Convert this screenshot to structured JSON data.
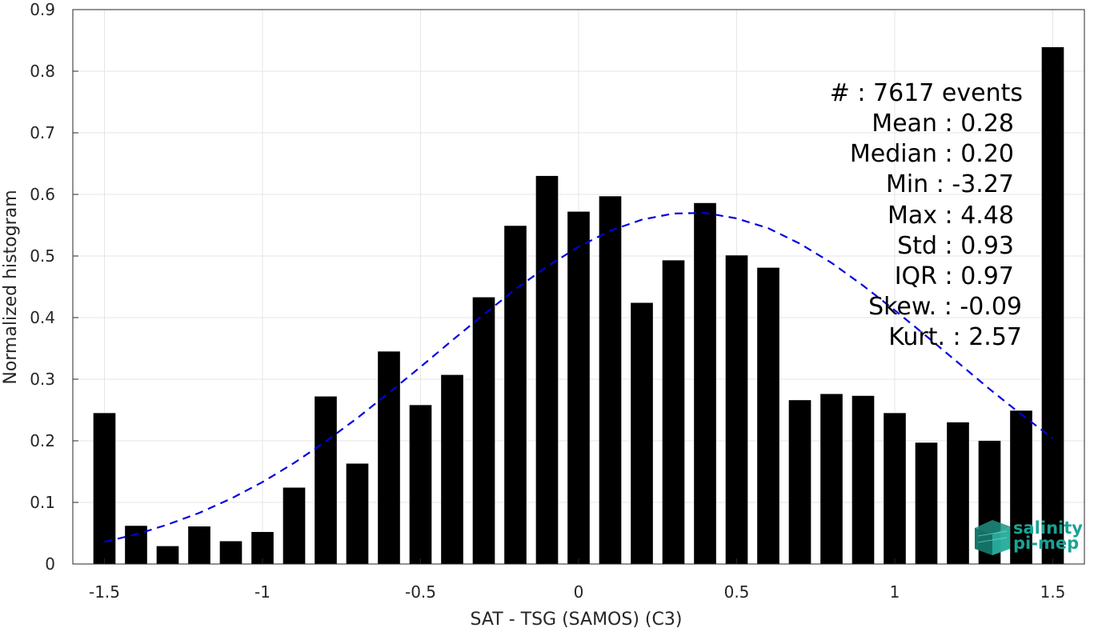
{
  "chart_data": {
    "type": "bar",
    "xlabel": "SAT - TSG (SAMOS) (C3)",
    "ylabel": "Normalized histogram",
    "xlim": [
      -1.6,
      1.6
    ],
    "ylim": [
      0,
      0.9
    ],
    "grid": true,
    "x_ticks": [
      -1.5,
      -1,
      -0.5,
      0,
      0.5,
      1,
      1.5
    ],
    "x_tick_labels": [
      "-1.5",
      "-1",
      "-0.5",
      "0",
      "0.5",
      "1",
      "1.5"
    ],
    "y_ticks": [
      0,
      0.1,
      0.2,
      0.3,
      0.4,
      0.5,
      0.6,
      0.7,
      0.8,
      0.9
    ],
    "y_tick_labels": [
      "0",
      "0.1",
      "0.2",
      "0.3",
      "0.4",
      "0.5",
      "0.6",
      "0.7",
      "0.8",
      "0.9"
    ],
    "x": [
      -1.5,
      -1.4,
      -1.3,
      -1.2,
      -1.1,
      -1.0,
      -0.9,
      -0.8,
      -0.7,
      -0.6,
      -0.5,
      -0.4,
      -0.3,
      -0.2,
      -0.1,
      0.0,
      0.1,
      0.2,
      0.3,
      0.4,
      0.5,
      0.6,
      0.7,
      0.8,
      0.9,
      1.0,
      1.1,
      1.2,
      1.3,
      1.4,
      1.5
    ],
    "values": [
      0.245,
      0.062,
      0.029,
      0.061,
      0.037,
      0.052,
      0.124,
      0.272,
      0.163,
      0.345,
      0.258,
      0.307,
      0.433,
      0.549,
      0.63,
      0.572,
      0.597,
      0.424,
      0.493,
      0.586,
      0.501,
      0.481,
      0.266,
      0.276,
      0.273,
      0.245,
      0.197,
      0.23,
      0.2,
      0.249,
      0.839
    ],
    "bar_color": "#000000",
    "fit_curve": {
      "style": "dashed",
      "color": "#0000e0",
      "x": [
        -1.5,
        -1.4,
        -1.3,
        -1.2,
        -1.1,
        -1.0,
        -0.9,
        -0.8,
        -0.7,
        -0.6,
        -0.5,
        -0.4,
        -0.3,
        -0.2,
        -0.1,
        0.0,
        0.1,
        0.2,
        0.3,
        0.4,
        0.5,
        0.6,
        0.7,
        0.8,
        0.9,
        1.0,
        1.1,
        1.2,
        1.3,
        1.4,
        1.5
      ],
      "y": [
        0.036,
        0.048,
        0.064,
        0.083,
        0.106,
        0.133,
        0.164,
        0.199,
        0.237,
        0.278,
        0.32,
        0.363,
        0.405,
        0.446,
        0.483,
        0.515,
        0.541,
        0.559,
        0.569,
        0.57,
        0.561,
        0.545,
        0.52,
        0.489,
        0.452,
        0.412,
        0.37,
        0.327,
        0.284,
        0.243,
        0.204
      ]
    },
    "stats": [
      "#  : 7617 events",
      "Mean : 0.28",
      "Median : 0.20",
      "Min : -3.27",
      "Max : 4.48",
      "Std : 0.93",
      "IQR : 0.97",
      "Skew. : -0.09",
      "Kurt. : 2.57"
    ]
  },
  "logo": {
    "line1": "salinity",
    "line2": "pi-mep",
    "color": "#1aa393"
  }
}
